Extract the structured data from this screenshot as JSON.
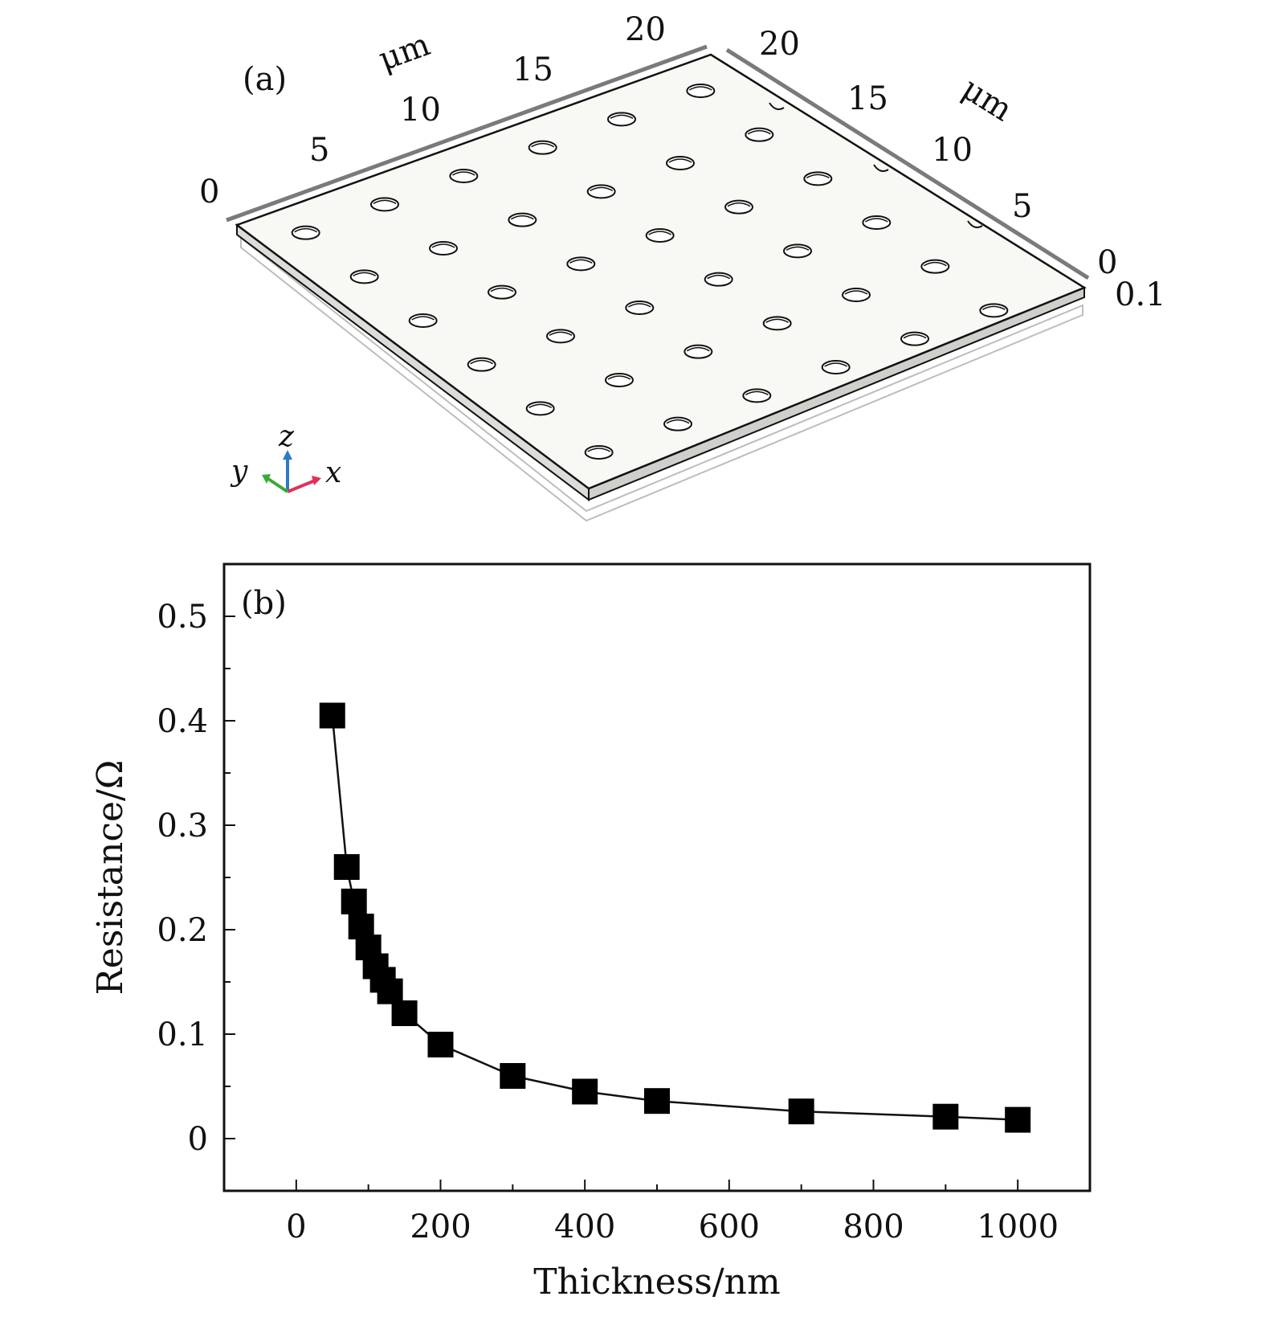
{
  "panel_a": {
    "label": "(a)",
    "unit_label_left": "μm",
    "unit_label_right": "μm",
    "left_axis_ticks": [
      "0",
      "5",
      "10",
      "15",
      "20"
    ],
    "right_axis_ticks": [
      "0",
      "5",
      "10",
      "15",
      "20"
    ],
    "thickness_label": "0.1",
    "triad": {
      "x": "x",
      "y": "y",
      "z": "z"
    },
    "colors": {
      "x": "#e0305a",
      "y": "#3aaa35",
      "z": "#2e78c8",
      "plate": "#f8f8f4",
      "frame": "#7a7a7a"
    }
  },
  "panel_b": {
    "label": "(b)"
  },
  "chart_data": {
    "type": "line",
    "marker": "square",
    "xlabel": "Thickness/nm",
    "ylabel": "Resistance/Ω",
    "xlim": [
      -100,
      1100
    ],
    "ylim": [
      -0.05,
      0.55
    ],
    "xticks": [
      0,
      200,
      400,
      600,
      800,
      1000
    ],
    "xtick_labels": [
      "0",
      "200",
      "400",
      "600",
      "800",
      "1000"
    ],
    "yticks": [
      0,
      0.1,
      0.2,
      0.3,
      0.4,
      0.5
    ],
    "ytick_labels": [
      "0",
      "0.1",
      "0.2",
      "0.3",
      "0.4",
      "0.5"
    ],
    "series": [
      {
        "name": "Resistance",
        "x": [
          50,
          70,
          80,
          90,
          100,
          110,
          120,
          130,
          150,
          200,
          300,
          400,
          500,
          700,
          900,
          1000
        ],
        "y": [
          0.405,
          0.26,
          0.227,
          0.203,
          0.183,
          0.165,
          0.152,
          0.141,
          0.12,
          0.09,
          0.06,
          0.045,
          0.036,
          0.026,
          0.021,
          0.018
        ]
      }
    ]
  }
}
